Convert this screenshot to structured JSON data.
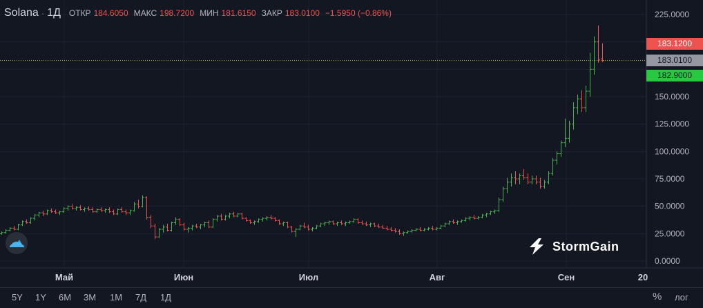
{
  "legend": {
    "symbol": "Solana",
    "separator": "·",
    "timeframe": "1Д",
    "open_label": "ОТКР",
    "open_value": "184.6050",
    "high_label": "МАКС",
    "high_value": "198.7200",
    "low_label": "МИН",
    "low_value": "181.6150",
    "close_label": "ЗАКР",
    "close_value": "183.0100",
    "change_value": "−1.5950 (−0.86%)"
  },
  "price_axis": {
    "ticks": [
      "225.0000",
      "150.0000",
      "125.0000",
      "100.0000",
      "75.0000",
      "50.0000",
      "25.0000",
      "0.0000"
    ]
  },
  "price_badges": {
    "top": {
      "text": "183.1200",
      "color": "#ef5350"
    },
    "mid": {
      "text": "183.0100",
      "color": "#9598a1"
    },
    "bottom": {
      "text": "182.9000",
      "color": "#26c940"
    }
  },
  "time_axis": {
    "labels": [
      "Май",
      "Июн",
      "Июл",
      "Авг",
      "Сен",
      "20"
    ]
  },
  "timeframes": [
    "5Y",
    "1Y",
    "6M",
    "3M",
    "1M",
    "7Д",
    "1Д"
  ],
  "bottom_right": {
    "percent": "%",
    "log": "лог"
  },
  "brand": {
    "name": "StormGain"
  },
  "colors": {
    "background": "#131722",
    "up": "#26a69a",
    "up_bright": "#4caf50",
    "down": "#ef5350",
    "grid": "#1e2230",
    "last_price_line": "#b8c05a"
  },
  "chart_data": {
    "type": "ohlc",
    "ylim": [
      0,
      225
    ],
    "yticks": [
      0,
      25,
      50,
      75,
      100,
      125,
      150,
      225
    ],
    "x_labels": [
      "Май",
      "Июн",
      "Июл",
      "Авг",
      "Сен",
      "20"
    ],
    "series": [
      {
        "ohlc": [
          [
            25,
            27,
            24,
            26
          ],
          [
            26,
            29,
            25,
            28
          ],
          [
            28,
            31,
            27,
            30
          ],
          [
            30,
            32,
            28,
            29
          ],
          [
            29,
            34,
            28,
            33
          ],
          [
            33,
            37,
            32,
            36
          ],
          [
            36,
            38,
            34,
            35
          ],
          [
            35,
            40,
            34,
            39
          ],
          [
            39,
            43,
            37,
            42
          ],
          [
            42,
            45,
            40,
            44
          ],
          [
            44,
            46,
            41,
            43
          ],
          [
            43,
            47,
            42,
            46
          ],
          [
            46,
            48,
            44,
            45
          ],
          [
            45,
            47,
            43,
            44
          ],
          [
            44,
            46,
            42,
            45
          ],
          [
            45,
            49,
            44,
            48
          ],
          [
            48,
            51,
            46,
            50
          ],
          [
            50,
            52,
            47,
            48
          ],
          [
            48,
            50,
            46,
            49
          ],
          [
            49,
            51,
            46,
            47
          ],
          [
            47,
            49,
            45,
            48
          ],
          [
            48,
            50,
            46,
            47
          ],
          [
            47,
            49,
            44,
            45
          ],
          [
            45,
            48,
            44,
            47
          ],
          [
            47,
            49,
            45,
            46
          ],
          [
            46,
            48,
            44,
            47
          ],
          [
            47,
            49,
            44,
            45
          ],
          [
            45,
            47,
            42,
            43
          ],
          [
            43,
            48,
            42,
            47
          ],
          [
            47,
            49,
            44,
            45
          ],
          [
            45,
            47,
            42,
            44
          ],
          [
            44,
            47,
            42,
            46
          ],
          [
            46,
            54,
            45,
            52
          ],
          [
            52,
            56,
            48,
            50
          ],
          [
            50,
            60,
            49,
            58
          ],
          [
            58,
            59,
            38,
            40
          ],
          [
            40,
            42,
            30,
            32
          ],
          [
            32,
            34,
            20,
            22
          ],
          [
            22,
            30,
            21,
            29
          ],
          [
            29,
            33,
            26,
            31
          ],
          [
            31,
            34,
            27,
            28
          ],
          [
            28,
            36,
            27,
            35
          ],
          [
            35,
            40,
            33,
            38
          ],
          [
            38,
            39,
            32,
            33
          ],
          [
            33,
            35,
            28,
            29
          ],
          [
            29,
            31,
            26,
            30
          ],
          [
            30,
            33,
            28,
            32
          ],
          [
            32,
            34,
            30,
            31
          ],
          [
            31,
            34,
            29,
            33
          ],
          [
            33,
            36,
            31,
            35
          ],
          [
            35,
            37,
            30,
            31
          ],
          [
            31,
            39,
            30,
            38
          ],
          [
            38,
            42,
            36,
            41
          ],
          [
            41,
            43,
            37,
            38
          ],
          [
            38,
            42,
            37,
            41
          ],
          [
            41,
            44,
            39,
            43
          ],
          [
            43,
            45,
            40,
            41
          ],
          [
            41,
            44,
            40,
            43
          ],
          [
            43,
            44,
            38,
            39
          ],
          [
            39,
            40,
            36,
            37
          ],
          [
            37,
            38,
            34,
            35
          ],
          [
            35,
            37,
            33,
            36
          ],
          [
            36,
            39,
            35,
            38
          ],
          [
            38,
            40,
            36,
            39
          ],
          [
            39,
            41,
            37,
            40
          ],
          [
            40,
            42,
            38,
            39
          ],
          [
            39,
            40,
            36,
            37
          ],
          [
            37,
            38,
            33,
            34
          ],
          [
            34,
            36,
            32,
            35
          ],
          [
            35,
            36,
            30,
            31
          ],
          [
            31,
            32,
            26,
            27
          ],
          [
            27,
            30,
            22,
            29
          ],
          [
            29,
            33,
            28,
            32
          ],
          [
            32,
            35,
            30,
            31
          ],
          [
            31,
            33,
            28,
            29
          ],
          [
            29,
            31,
            27,
            30
          ],
          [
            30,
            33,
            29,
            32
          ],
          [
            32,
            35,
            31,
            34
          ],
          [
            34,
            36,
            32,
            35
          ],
          [
            35,
            37,
            33,
            36
          ],
          [
            36,
            37,
            33,
            34
          ],
          [
            34,
            36,
            32,
            35
          ],
          [
            35,
            37,
            33,
            34
          ],
          [
            34,
            36,
            32,
            35
          ],
          [
            35,
            37,
            34,
            36
          ],
          [
            36,
            39,
            35,
            38
          ],
          [
            38,
            39,
            34,
            35
          ],
          [
            35,
            37,
            33,
            34
          ],
          [
            34,
            36,
            32,
            33
          ],
          [
            33,
            35,
            31,
            34
          ],
          [
            34,
            35,
            31,
            32
          ],
          [
            32,
            34,
            30,
            31
          ],
          [
            31,
            33,
            29,
            30
          ],
          [
            30,
            32,
            28,
            29
          ],
          [
            29,
            31,
            27,
            28
          ],
          [
            28,
            30,
            26,
            27
          ],
          [
            27,
            29,
            24,
            25
          ],
          [
            25,
            27,
            23,
            26
          ],
          [
            26,
            28,
            25,
            27
          ],
          [
            27,
            29,
            26,
            28
          ],
          [
            28,
            30,
            27,
            29
          ],
          [
            29,
            31,
            27,
            28
          ],
          [
            28,
            30,
            27,
            29
          ],
          [
            29,
            31,
            28,
            30
          ],
          [
            30,
            32,
            28,
            29
          ],
          [
            29,
            31,
            28,
            30
          ],
          [
            30,
            33,
            29,
            32
          ],
          [
            32,
            35,
            31,
            34
          ],
          [
            34,
            37,
            33,
            36
          ],
          [
            36,
            38,
            34,
            35
          ],
          [
            35,
            37,
            33,
            36
          ],
          [
            36,
            38,
            35,
            37
          ],
          [
            37,
            40,
            36,
            39
          ],
          [
            39,
            41,
            37,
            40
          ],
          [
            40,
            42,
            38,
            39
          ],
          [
            39,
            41,
            38,
            40
          ],
          [
            40,
            43,
            39,
            42
          ],
          [
            42,
            44,
            40,
            43
          ],
          [
            43,
            46,
            42,
            45
          ],
          [
            45,
            47,
            43,
            46
          ],
          [
            46,
            58,
            45,
            56
          ],
          [
            56,
            68,
            54,
            66
          ],
          [
            66,
            76,
            62,
            72
          ],
          [
            72,
            80,
            68,
            76
          ],
          [
            76,
            82,
            70,
            75
          ],
          [
            75,
            80,
            70,
            78
          ],
          [
            78,
            84,
            74,
            76
          ],
          [
            76,
            80,
            70,
            72
          ],
          [
            72,
            78,
            70,
            75
          ],
          [
            75,
            78,
            70,
            72
          ],
          [
            72,
            76,
            66,
            68
          ],
          [
            68,
            74,
            66,
            72
          ],
          [
            72,
            82,
            70,
            80
          ],
          [
            80,
            94,
            78,
            92
          ],
          [
            92,
            100,
            88,
            98
          ],
          [
            98,
            110,
            95,
            108
          ],
          [
            108,
            130,
            104,
            112
          ],
          [
            112,
            128,
            108,
            125
          ],
          [
            125,
            145,
            120,
            140
          ],
          [
            140,
            152,
            134,
            148
          ],
          [
            148,
            156,
            136,
            140
          ],
          [
            140,
            160,
            136,
            155
          ],
          [
            155,
            190,
            150,
            175
          ],
          [
            175,
            205,
            170,
            200
          ],
          [
            200,
            215,
            181,
            184
          ],
          [
            184.6,
            198.72,
            181.615,
            183.01
          ]
        ]
      }
    ],
    "last_price": 183.01
  }
}
